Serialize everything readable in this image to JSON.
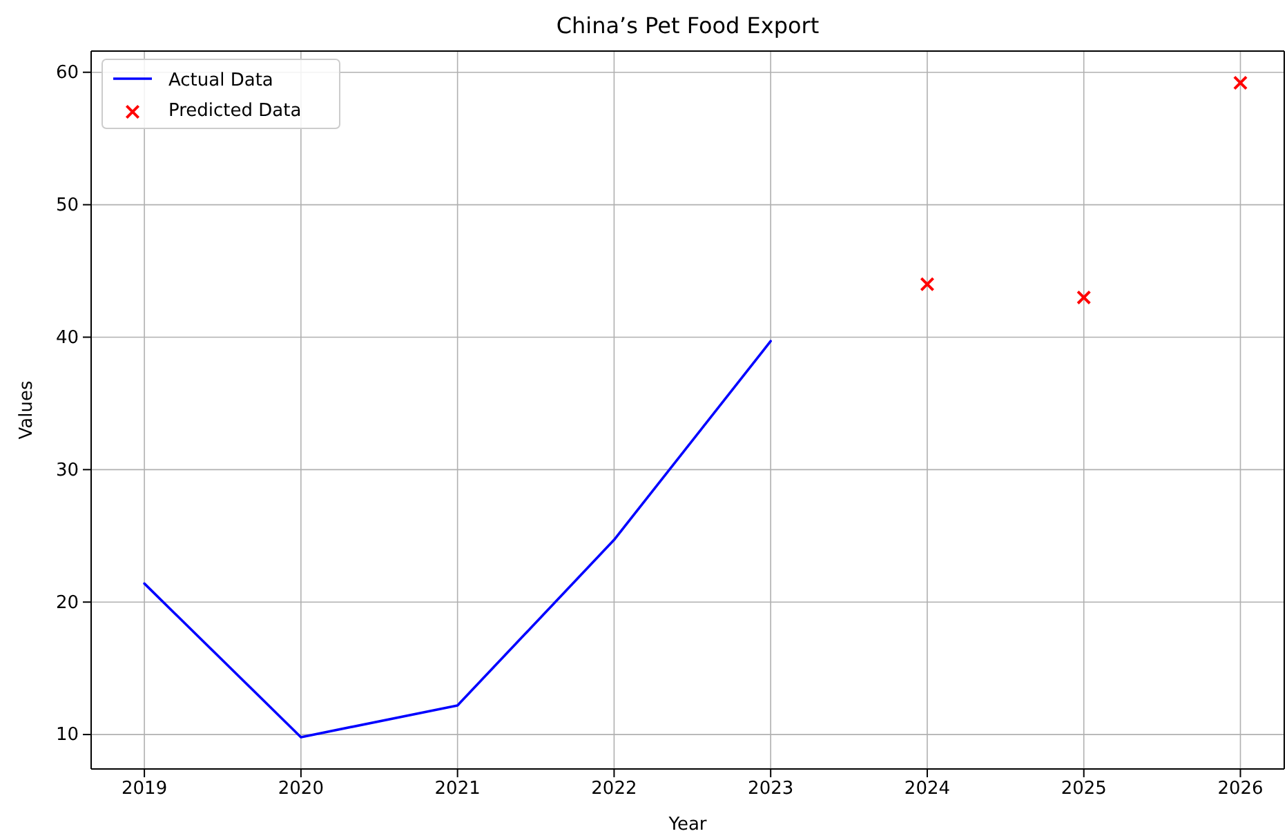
{
  "chart_data": {
    "type": "line",
    "title": "China’s Pet Food Export",
    "xlabel": "Year",
    "ylabel": "Values",
    "xlim": [
      2018.66,
      2026.28
    ],
    "xticks": [
      2019,
      2020,
      2021,
      2022,
      2023,
      2024,
      2025,
      2026
    ],
    "ylim": [
      7.4,
      61.6
    ],
    "yticks": [
      10,
      20,
      30,
      40,
      50,
      60
    ],
    "grid": true,
    "legend": "top left",
    "series": [
      {
        "name": "Actual Data",
        "color": "#0000ff",
        "x": [
          2019,
          2020,
          2021,
          2022,
          2023
        ],
        "values": [
          21.4,
          9.8,
          12.2,
          24.7,
          39.7
        ],
        "marker": "none",
        "line_style": "solid"
      },
      {
        "name": "Predicted Data",
        "type": "scatter",
        "color": "#ff0000",
        "x": [
          2024,
          2025,
          2026
        ],
        "values": [
          44.0,
          43.0,
          59.2
        ],
        "marker": "cross"
      }
    ]
  }
}
